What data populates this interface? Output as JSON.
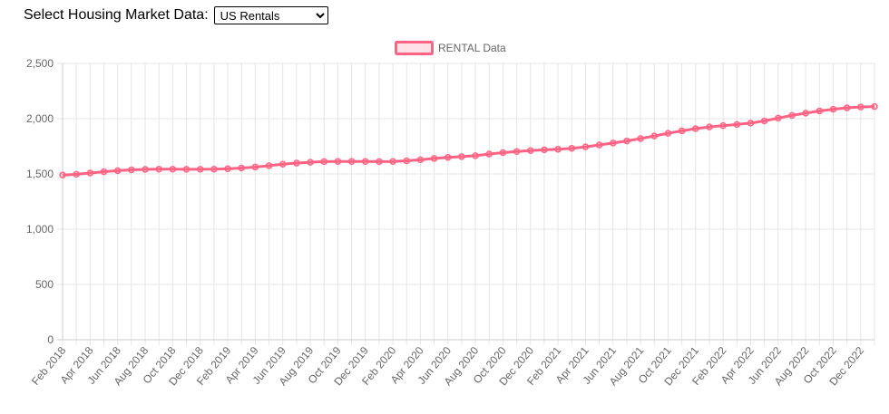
{
  "controls": {
    "label": "Select Housing Market Data:",
    "selected": "US Rentals"
  },
  "colors": {
    "line": "#ff6384",
    "fill": "rgba(255,99,132,0.2)",
    "grid": "#e5e5e5",
    "tick": "#666666"
  },
  "chart_data": {
    "type": "line",
    "legend": {
      "position": "top",
      "entries": [
        "RENTAL Data"
      ]
    },
    "grid": true,
    "ylim": [
      0,
      2500
    ],
    "yticks": [
      0,
      500,
      1000,
      1500,
      2000,
      2500
    ],
    "ytick_labels": [
      "0",
      "500",
      "1,000",
      "1,500",
      "2,000",
      "2,500"
    ],
    "x_tick_labels": [
      "Feb 2018",
      "Apr 2018",
      "Jun 2018",
      "Aug 2018",
      "Oct 2018",
      "Dec 2018",
      "Feb 2019",
      "Apr 2019",
      "Jun 2019",
      "Aug 2019",
      "Oct 2019",
      "Dec 2019",
      "Feb 2020",
      "Apr 2020",
      "Jun 2020",
      "Aug 2020",
      "Oct 2020",
      "Dec 2020",
      "Feb 2021",
      "Apr 2021",
      "Jun 2021",
      "Aug 2021",
      "Oct 2021",
      "Dec 2021",
      "Feb 2022",
      "Apr 2022",
      "Jun 2022",
      "Aug 2022",
      "Oct 2022",
      "Dec 2022"
    ],
    "series": [
      {
        "name": "RENTAL Data",
        "x": [
          "Feb 2018",
          "Mar 2018",
          "Apr 2018",
          "May 2018",
          "Jun 2018",
          "Jul 2018",
          "Aug 2018",
          "Sep 2018",
          "Oct 2018",
          "Nov 2018",
          "Dec 2018",
          "Jan 2019",
          "Feb 2019",
          "Mar 2019",
          "Apr 2019",
          "May 2019",
          "Jun 2019",
          "Jul 2019",
          "Aug 2019",
          "Sep 2019",
          "Oct 2019",
          "Nov 2019",
          "Dec 2019",
          "Jan 2020",
          "Feb 2020",
          "Mar 2020",
          "Apr 2020",
          "May 2020",
          "Jun 2020",
          "Jul 2020",
          "Aug 2020",
          "Sep 2020",
          "Oct 2020",
          "Nov 2020",
          "Dec 2020",
          "Jan 2021",
          "Feb 2021",
          "Mar 2021",
          "Apr 2021",
          "May 2021",
          "Jun 2021",
          "Jul 2021",
          "Aug 2021",
          "Sep 2021",
          "Oct 2021",
          "Nov 2021",
          "Dec 2021",
          "Jan 2022",
          "Feb 2022",
          "Mar 2022",
          "Apr 2022",
          "May 2022",
          "Jun 2022",
          "Jul 2022",
          "Aug 2022",
          "Sep 2022",
          "Oct 2022",
          "Nov 2022",
          "Dec 2022",
          "Jan 2023"
        ],
        "values": [
          1490,
          1497,
          1508,
          1520,
          1530,
          1537,
          1541,
          1543,
          1543,
          1542,
          1542,
          1543,
          1547,
          1553,
          1562,
          1575,
          1588,
          1598,
          1606,
          1612,
          1613,
          1613,
          1613,
          1612,
          1613,
          1619,
          1628,
          1640,
          1650,
          1657,
          1665,
          1680,
          1693,
          1703,
          1711,
          1718,
          1723,
          1732,
          1745,
          1762,
          1780,
          1798,
          1820,
          1843,
          1868,
          1890,
          1910,
          1925,
          1937,
          1948,
          1960,
          1980,
          2005,
          2030,
          2050,
          2070,
          2085,
          2098,
          2106,
          2110
        ]
      }
    ]
  }
}
